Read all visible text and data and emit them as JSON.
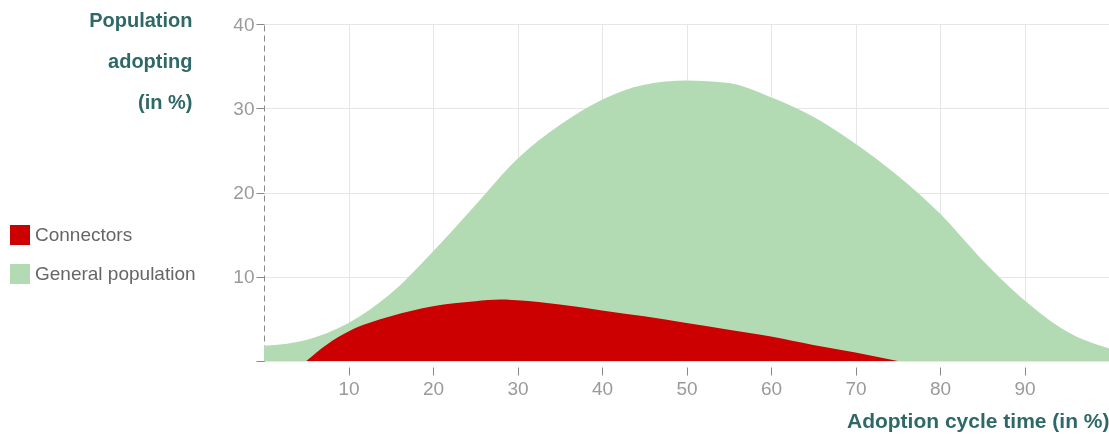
{
  "chart_data": {
    "type": "area",
    "xlabel": "Adoption cycle time (in %)",
    "ylabel": "Population adopting (in %)",
    "xlim": [
      0,
      100
    ],
    "xticks": [
      10,
      20,
      30,
      40,
      50,
      60,
      70,
      80,
      90
    ],
    "ylim": [
      0,
      40
    ],
    "yticks": [
      {
        "value": 0,
        "label": null
      },
      10,
      20,
      30,
      40
    ],
    "grid": true,
    "legend": "left",
    "series": [
      {
        "name": "Connectors",
        "color": "#cc0000",
        "x": [
          5,
          7.5,
          10,
          15,
          20,
          25,
          28,
          30,
          35,
          40,
          45,
          50,
          55,
          60,
          65,
          70,
          75
        ],
        "values": [
          0,
          2,
          3.5,
          5.3,
          6.5,
          7.1,
          7.3,
          7.2,
          6.7,
          6,
          5.3,
          4.5,
          3.7,
          2.9,
          1.9,
          1,
          0
        ]
      },
      {
        "name": "General population",
        "color": "#b3dbb3",
        "x": [
          0,
          5,
          10,
          15,
          20,
          25,
          30,
          35,
          40,
          45,
          50,
          55,
          60,
          65,
          70,
          75,
          80,
          85,
          90,
          95,
          100
        ],
        "values": [
          1.8,
          2.5,
          4.5,
          8,
          13,
          18.5,
          24,
          28,
          31,
          32.8,
          33.3,
          33,
          31.3,
          29,
          25.8,
          22,
          17.5,
          12,
          7.2,
          3.5,
          1.5
        ]
      }
    ]
  }
}
